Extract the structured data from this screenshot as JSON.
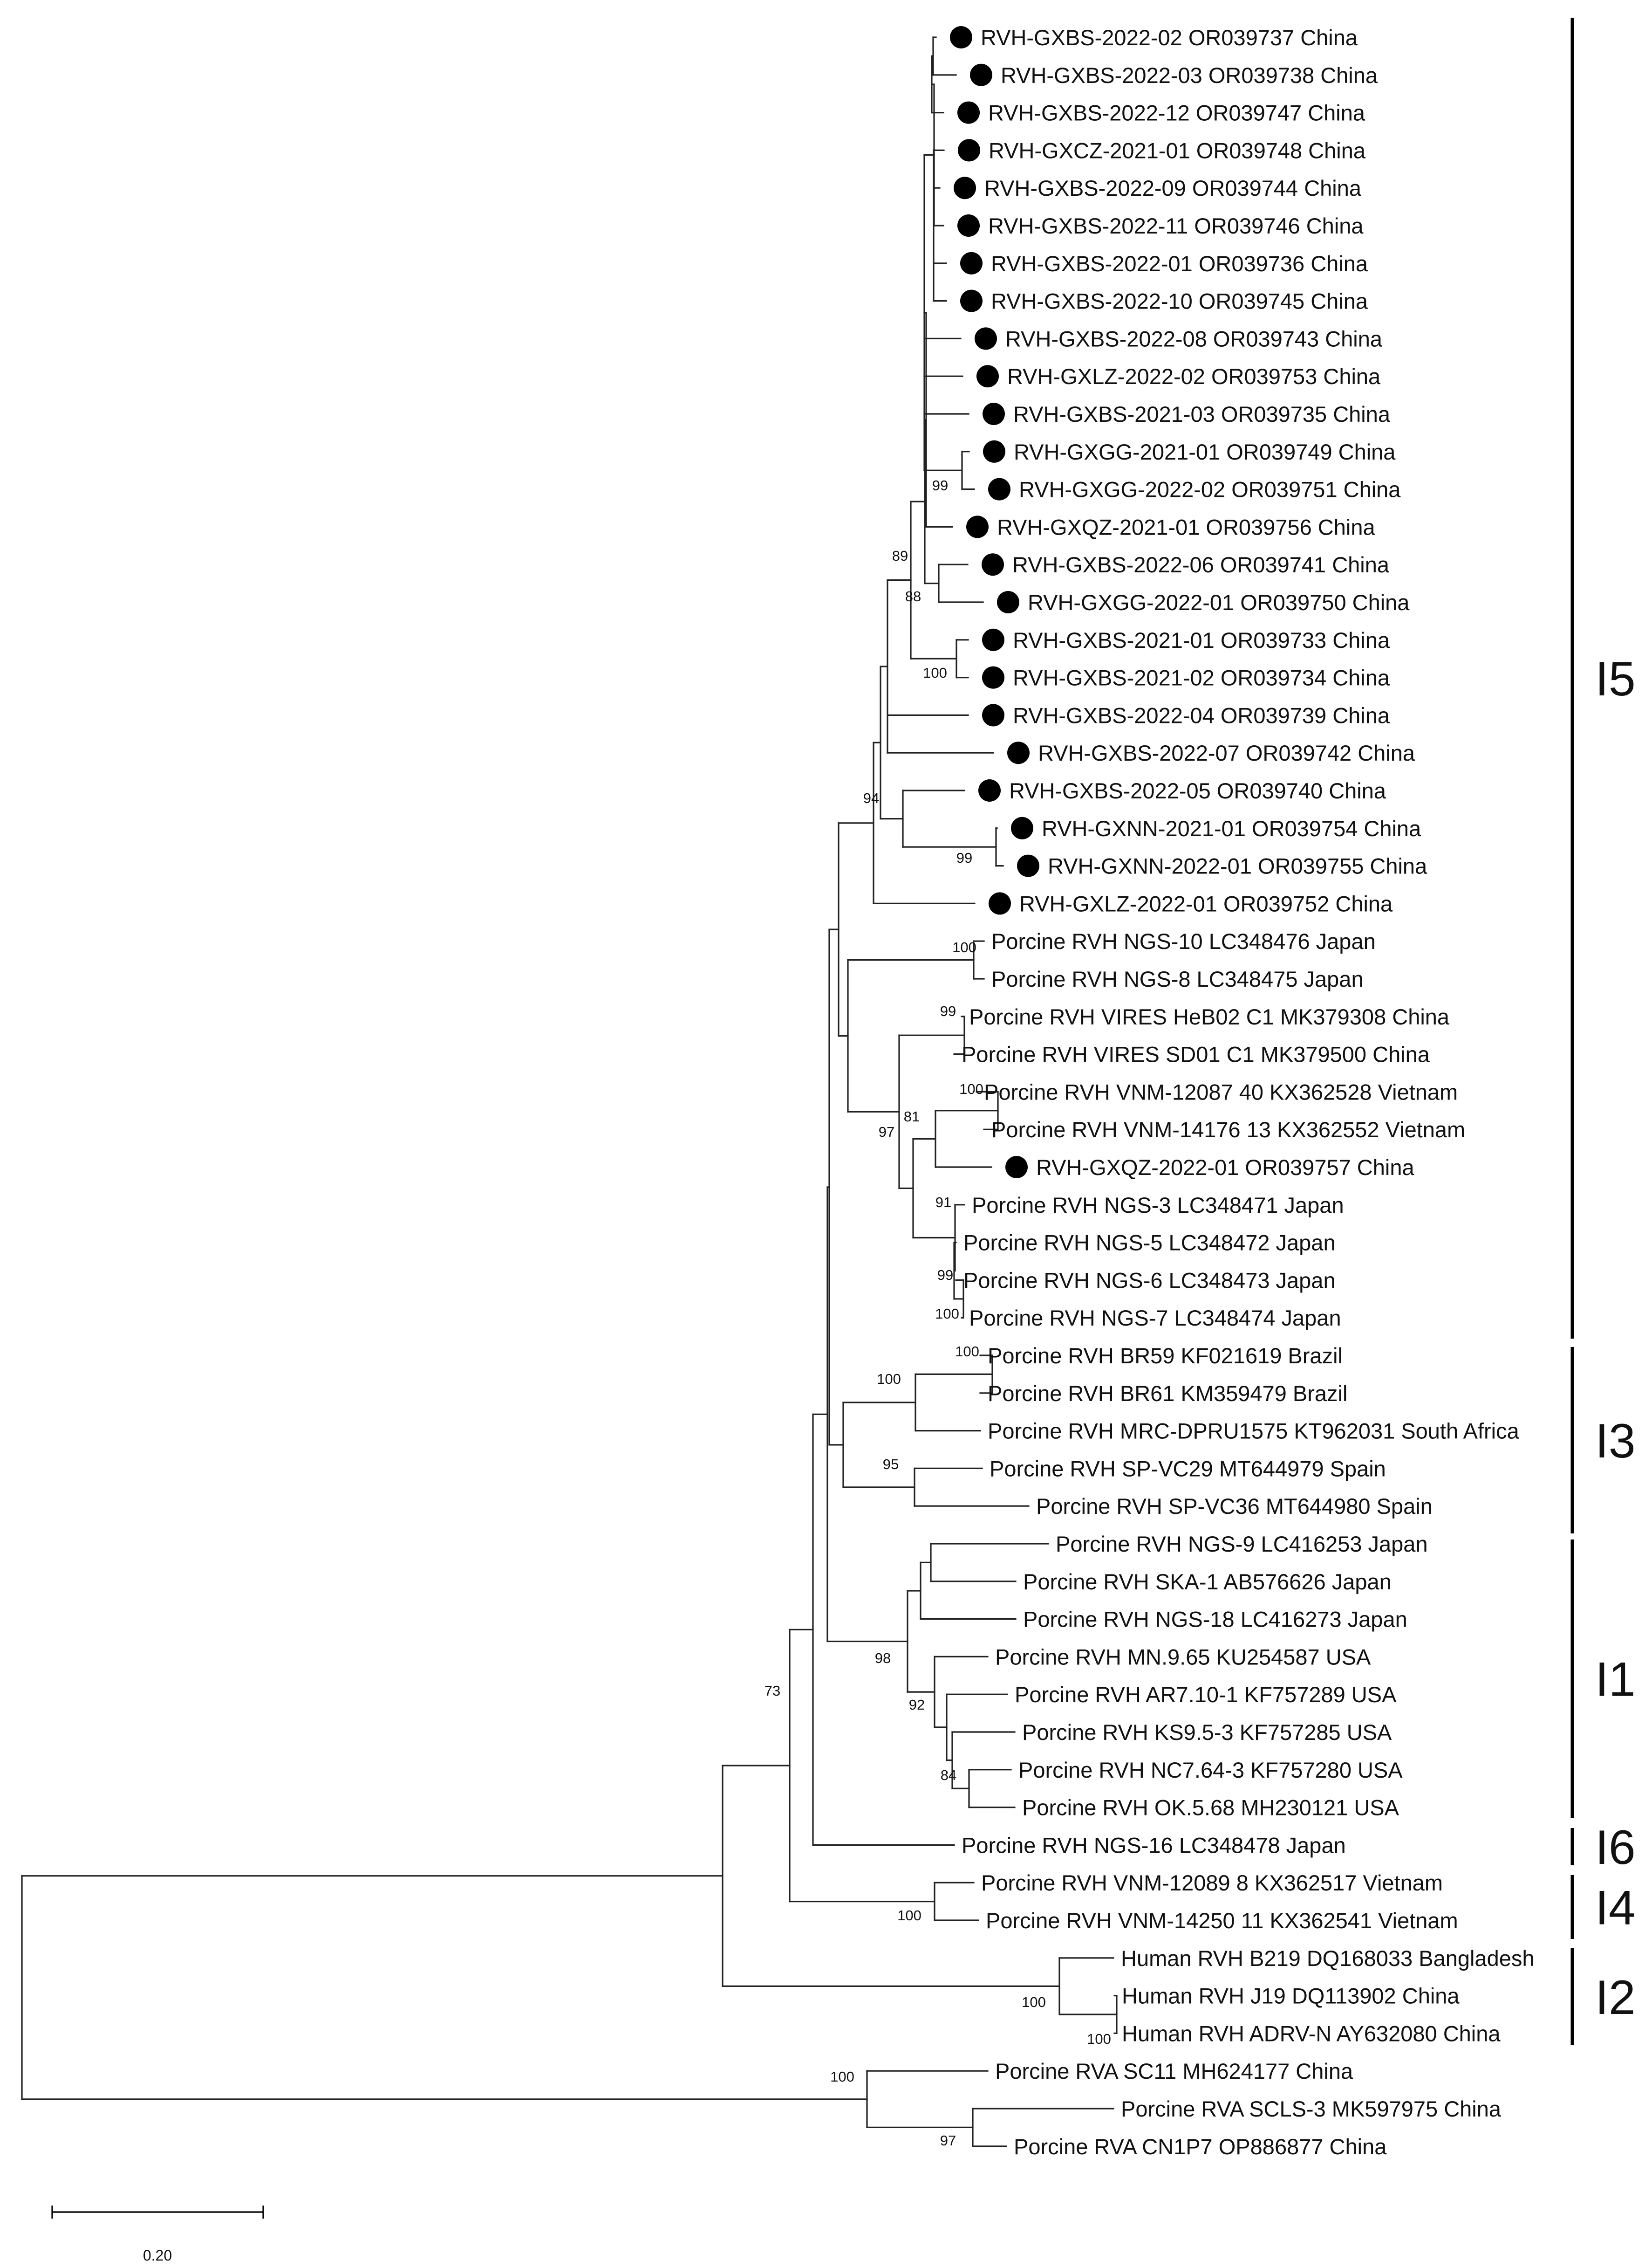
{
  "figure": {
    "type": "phylogenetic-tree",
    "marker_color": "#000000"
  },
  "leaves": [
    {
      "name": "RVH-GXBS-2022-02 OR039737 China",
      "marked": true
    },
    {
      "name": "RVH-GXBS-2022-03 OR039738 China",
      "marked": true
    },
    {
      "name": "RVH-GXBS-2022-12 OR039747 China",
      "marked": true
    },
    {
      "name": "RVH-GXCZ-2021-01 OR039748 China",
      "marked": true
    },
    {
      "name": "RVH-GXBS-2022-09 OR039744 China",
      "marked": true
    },
    {
      "name": "RVH-GXBS-2022-11 OR039746 China",
      "marked": true
    },
    {
      "name": "RVH-GXBS-2022-01 OR039736 China",
      "marked": true
    },
    {
      "name": "RVH-GXBS-2022-10 OR039745 China",
      "marked": true
    },
    {
      "name": "RVH-GXBS-2022-08 OR039743 China",
      "marked": true
    },
    {
      "name": "RVH-GXLZ-2022-02 OR039753 China",
      "marked": true
    },
    {
      "name": "RVH-GXBS-2021-03 OR039735 China",
      "marked": true
    },
    {
      "name": "RVH-GXGG-2021-01 OR039749 China",
      "marked": true
    },
    {
      "name": "RVH-GXGG-2022-02 OR039751 China",
      "marked": true
    },
    {
      "name": "RVH-GXQZ-2021-01 OR039756 China",
      "marked": true
    },
    {
      "name": "RVH-GXBS-2022-06 OR039741 China",
      "marked": true
    },
    {
      "name": "RVH-GXGG-2022-01 OR039750 China",
      "marked": true
    },
    {
      "name": "RVH-GXBS-2021-01 OR039733 China",
      "marked": true
    },
    {
      "name": "RVH-GXBS-2021-02 OR039734 China",
      "marked": true
    },
    {
      "name": "RVH-GXBS-2022-04 OR039739 China",
      "marked": true
    },
    {
      "name": "RVH-GXBS-2022-07 OR039742 China",
      "marked": true
    },
    {
      "name": "RVH-GXBS-2022-05 OR039740 China",
      "marked": true
    },
    {
      "name": "RVH-GXNN-2021-01 OR039754 China",
      "marked": true
    },
    {
      "name": "RVH-GXNN-2022-01 OR039755 China",
      "marked": true
    },
    {
      "name": "RVH-GXLZ-2022-01 OR039752 China",
      "marked": true
    },
    {
      "name": "Porcine RVH NGS-10 LC348476 Japan",
      "marked": false
    },
    {
      "name": "Porcine RVH NGS-8 LC348475 Japan",
      "marked": false
    },
    {
      "name": "Porcine RVH VIRES HeB02 C1 MK379308 China",
      "marked": false
    },
    {
      "name": "Porcine RVH VIRES SD01 C1 MK379500 China",
      "marked": false
    },
    {
      "name": "Porcine RVH VNM-12087 40 KX362528 Vietnam",
      "marked": false
    },
    {
      "name": "Porcine RVH VNM-14176 13 KX362552 Vietnam",
      "marked": false
    },
    {
      "name": "RVH-GXQZ-2022-01 OR039757 China",
      "marked": true
    },
    {
      "name": "Porcine RVH NGS-3 LC348471 Japan",
      "marked": false
    },
    {
      "name": "Porcine RVH NGS-5 LC348472 Japan",
      "marked": false
    },
    {
      "name": "Porcine RVH NGS-6 LC348473 Japan",
      "marked": false
    },
    {
      "name": "Porcine RVH NGS-7 LC348474 Japan",
      "marked": false
    },
    {
      "name": "Porcine RVH BR59 KF021619 Brazil",
      "marked": false
    },
    {
      "name": "Porcine RVH BR61 KM359479 Brazil",
      "marked": false
    },
    {
      "name": "Porcine RVH MRC-DPRU1575 KT962031 South Africa",
      "marked": false
    },
    {
      "name": "Porcine RVH SP-VC29 MT644979 Spain",
      "marked": false
    },
    {
      "name": "Porcine RVH SP-VC36 MT644980 Spain",
      "marked": false
    },
    {
      "name": "Porcine RVH NGS-9 LC416253 Japan",
      "marked": false
    },
    {
      "name": "Porcine RVH SKA-1 AB576626 Japan",
      "marked": false
    },
    {
      "name": "Porcine RVH NGS-18 LC416273 Japan",
      "marked": false
    },
    {
      "name": "Porcine RVH MN.9.65 KU254587 USA",
      "marked": false
    },
    {
      "name": "Porcine RVH AR7.10-1 KF757289 USA",
      "marked": false
    },
    {
      "name": "Porcine RVH KS9.5-3 KF757285 USA",
      "marked": false
    },
    {
      "name": "Porcine RVH NC7.64-3 KF757280 USA",
      "marked": false
    },
    {
      "name": "Porcine RVH OK.5.68 MH230121 USA",
      "marked": false
    },
    {
      "name": "Porcine RVH NGS-16 LC348478 Japan",
      "marked": false
    },
    {
      "name": "Porcine RVH VNM-12089 8 KX362517 Vietnam",
      "marked": false
    },
    {
      "name": "Porcine RVH VNM-14250 11 KX362541 Vietnam",
      "marked": false
    },
    {
      "name": "Human RVH B219 DQ168033 Bangladesh",
      "marked": false
    },
    {
      "name": "Human RVH J19 DQ113902 China",
      "marked": false
    },
    {
      "name": "Human RVH ADRV-N AY632080 China",
      "marked": false
    },
    {
      "name": "Porcine RVA SC11 MH624177 China",
      "marked": false
    },
    {
      "name": "Porcine RVA SCLS-3 MK597975 China",
      "marked": false
    },
    {
      "name": "Porcine RVA CN1P7 OP886877 China",
      "marked": false
    }
  ],
  "bootstrap_values": [
    "99",
    "89",
    "88",
    "100",
    "94",
    "99",
    "100",
    "99",
    "100",
    "97",
    "81",
    "91",
    "99",
    "100",
    "100",
    "100",
    "95",
    "98",
    "92",
    "84",
    "73",
    "100",
    "100",
    "100",
    "100",
    "97"
  ],
  "clades": [
    {
      "label": "I5"
    },
    {
      "label": "I3"
    },
    {
      "label": "I1"
    },
    {
      "label": "I6"
    },
    {
      "label": "I4"
    },
    {
      "label": "I2"
    }
  ],
  "scale_bar": {
    "value": 0.2,
    "label": "0.20"
  }
}
